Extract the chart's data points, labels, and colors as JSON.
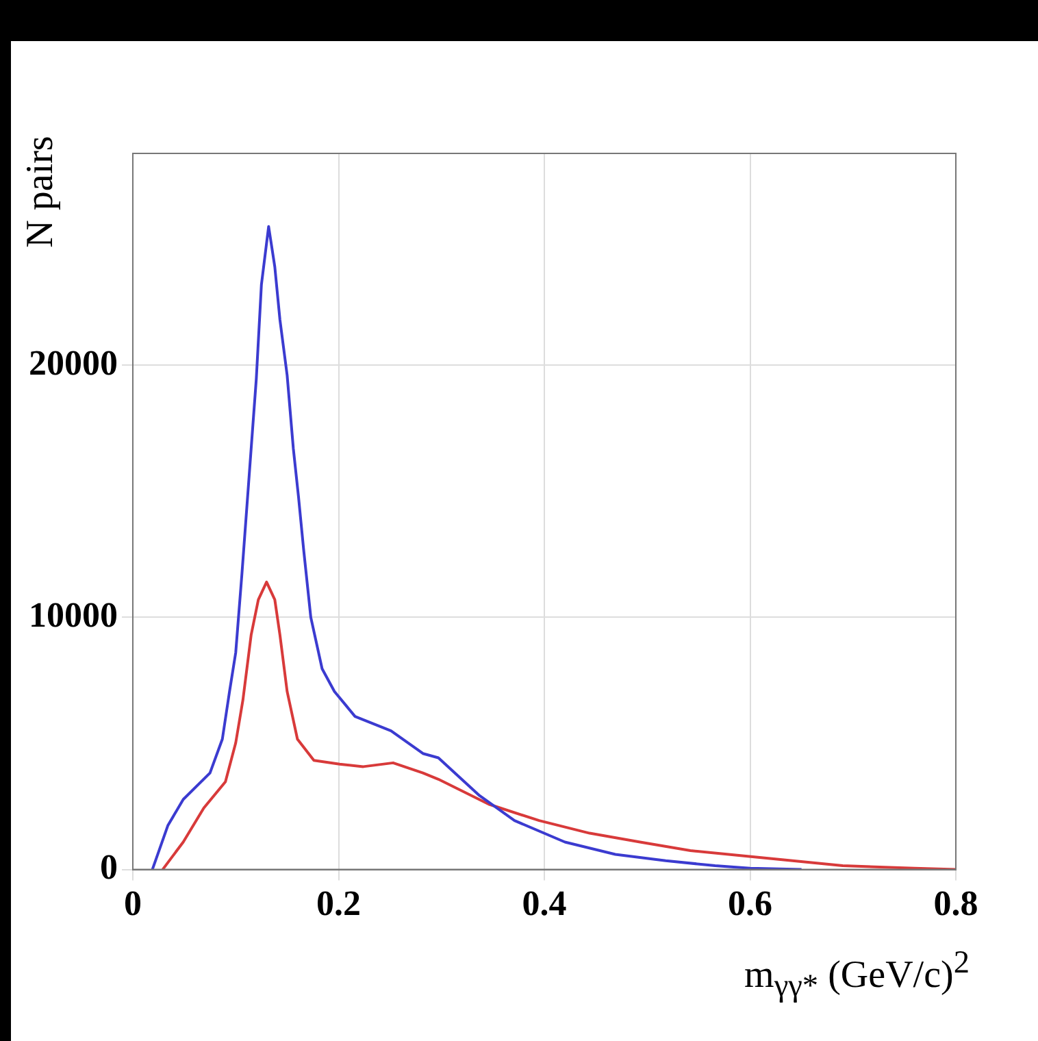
{
  "chart_data": {
    "type": "line",
    "xlabel": "m$_{γγ*}$ (GeV/c)$^{2}$",
    "ylabel": "N pairs",
    "xlim": [
      0,
      0.8
    ],
    "xticks": [
      0,
      0.2,
      0.4,
      0.6,
      0.8
    ],
    "ylim": [
      0,
      28400
    ],
    "yticks": [
      0,
      10000,
      20000
    ],
    "grid": true,
    "legend": false,
    "series": [
      {
        "color": "#3b3bd0",
        "x": [
          0.019,
          0.034,
          0.049,
          0.075,
          0.087,
          0.094,
          0.1,
          0.106,
          0.1125,
          0.12,
          0.125,
          0.132,
          0.138,
          0.143,
          0.15,
          0.156,
          0.161,
          0.166,
          0.173,
          0.184,
          0.196,
          0.216,
          0.251,
          0.282,
          0.297,
          0.337,
          0.371,
          0.42,
          0.469,
          0.518,
          0.566,
          0.6,
          0.65
        ],
        "values": [
          0,
          1740,
          2780,
          3830,
          5170,
          7060,
          8600,
          11700,
          15300,
          19450,
          23200,
          25500,
          23900,
          21800,
          19600,
          16700,
          14800,
          12700,
          10000,
          7960,
          7060,
          6070,
          5500,
          4600,
          4430,
          2930,
          1940,
          1090,
          600,
          350,
          150,
          50,
          0
        ]
      },
      {
        "color": "#d83a3a",
        "x": [
          0.029,
          0.049,
          0.069,
          0.09,
          0.1,
          0.107,
          0.115,
          0.122,
          0.13,
          0.138,
          0.143,
          0.15,
          0.16,
          0.176,
          0.201,
          0.224,
          0.253,
          0.282,
          0.297,
          0.346,
          0.395,
          0.444,
          0.493,
          0.542,
          0.616,
          0.69,
          0.76,
          0.8
        ],
        "values": [
          0,
          1090,
          2440,
          3480,
          5020,
          6720,
          9300,
          10700,
          11400,
          10700,
          9300,
          7060,
          5170,
          4330,
          4180,
          4080,
          4230,
          3830,
          3580,
          2590,
          1940,
          1440,
          1090,
          750,
          450,
          150,
          50,
          0
        ]
      }
    ]
  }
}
